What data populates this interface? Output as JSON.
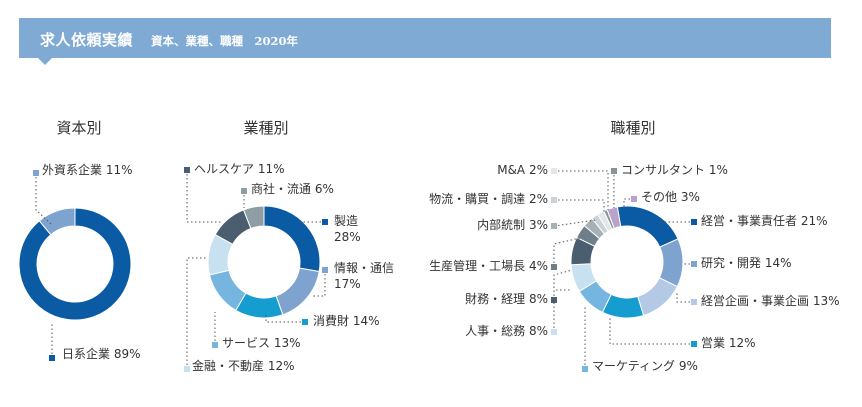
{
  "header": {
    "title": "求人依頼実績",
    "subtitle": "資本、業種、職種　2020年"
  },
  "chart_data": [
    {
      "type": "pie",
      "title": "資本別",
      "slices": [
        {
          "label": "日系企業",
          "value": 89,
          "color": "#0a5aa4"
        },
        {
          "label": "外資系企業",
          "value": 11,
          "color": "#7fa3cf"
        }
      ]
    },
    {
      "type": "pie",
      "title": "業種別",
      "slices": [
        {
          "label": "製造",
          "value": 28,
          "color": "#0a5aa4"
        },
        {
          "label": "情報・通信",
          "value": 17,
          "color": "#7fa3cf"
        },
        {
          "label": "消費財",
          "value": 14,
          "color": "#159dd0"
        },
        {
          "label": "サービス",
          "value": 13,
          "color": "#76b5e0"
        },
        {
          "label": "金融・不動産",
          "value": 12,
          "color": "#c7e1f1"
        },
        {
          "label": "ヘルスケア",
          "value": 11,
          "color": "#4b5e6f"
        },
        {
          "label": "商社・流通",
          "value": 6,
          "color": "#8f9da4"
        }
      ]
    },
    {
      "type": "pie",
      "title": "職種別",
      "slices": [
        {
          "label": "経営・事業責任者",
          "value": 21,
          "color": "#0a5aa4"
        },
        {
          "label": "研究・開発",
          "value": 14,
          "color": "#7fa3cf"
        },
        {
          "label": "経営企画・事業企画",
          "value": 13,
          "color": "#b4c9e6"
        },
        {
          "label": "営業",
          "value": 12,
          "color": "#159dd0"
        },
        {
          "label": "マーケティング",
          "value": 9,
          "color": "#76b5e0"
        },
        {
          "label": "人事・総務",
          "value": 8,
          "color": "#c7e1f1"
        },
        {
          "label": "財務・経理",
          "value": 8,
          "color": "#4b5e6f"
        },
        {
          "label": "生産管理・工場長",
          "value": 4,
          "color": "#6f7f8a"
        },
        {
          "label": "内部統制",
          "value": 3,
          "color": "#a4b1b8"
        },
        {
          "label": "物流・購買・調達",
          "value": 2,
          "color": "#cbd3d7"
        },
        {
          "label": "M&A",
          "value": 2,
          "color": "#e3e7ea"
        },
        {
          "label": "コンサルタント",
          "value": 1,
          "color": "#8a939a"
        },
        {
          "label": "その他",
          "value": 3,
          "color": "#b9a3cc"
        }
      ]
    }
  ]
}
